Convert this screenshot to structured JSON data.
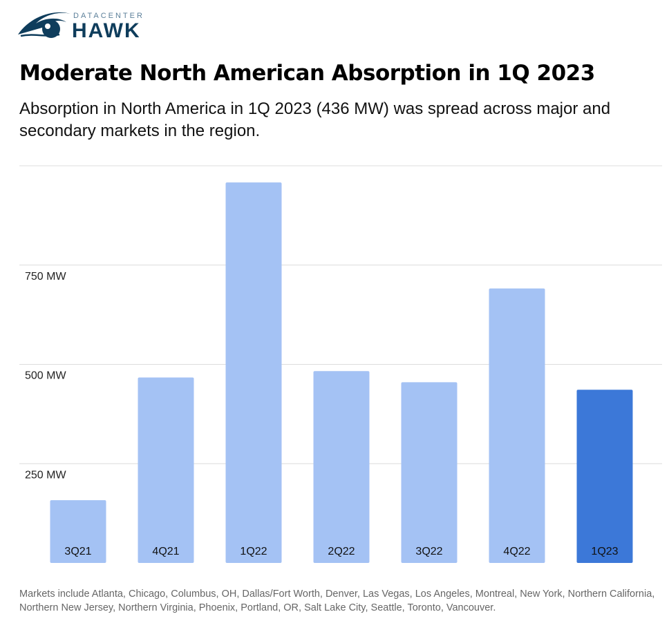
{
  "logo": {
    "line1": "DATACENTER",
    "line2": "HAWK",
    "color": "#0f3d5c"
  },
  "title": "Moderate North American Absorption in 1Q 2023",
  "subtitle": "Absorption in North America in 1Q 2023 (436 MW) was spread across major and secondary markets in the region.",
  "chart_data": {
    "type": "bar",
    "categories": [
      "3Q21",
      "4Q21",
      "1Q22",
      "2Q22",
      "3Q22",
      "4Q22",
      "1Q23"
    ],
    "values": [
      158,
      467,
      958,
      483,
      455,
      691,
      436
    ],
    "unit": "MW",
    "ylim": [
      0,
      1000
    ],
    "yticks": [
      {
        "value": 250,
        "label": "250 MW"
      },
      {
        "value": 500,
        "label": "500 MW"
      },
      {
        "value": 750,
        "label": "750 MW"
      }
    ],
    "grid": true,
    "colors": {
      "default": "#a4c2f4",
      "highlight": "#3c78d8"
    },
    "highlight": "1Q23"
  },
  "footnote": "Markets include Atlanta, Chicago, Columbus, OH, Dallas/Fort Worth, Denver, Las Vegas, Los Angeles, Montreal, New York, Northern California, Northern New Jersey, Northern Virginia, Phoenix, Portland, OR, Salt Lake City, Seattle, Toronto, Vancouver."
}
